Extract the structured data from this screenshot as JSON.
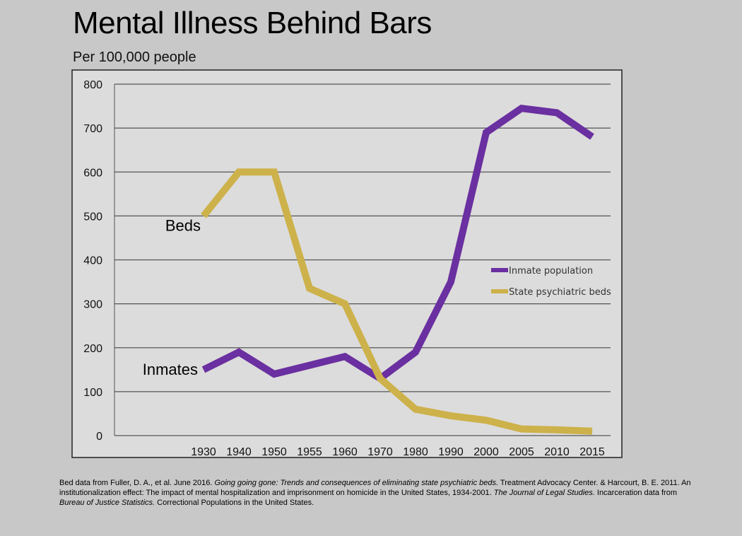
{
  "title": "Mental Illness Behind Bars",
  "subtitle": "Per 100,000 people",
  "colors": {
    "inmate": "#6a2fa0",
    "beds": "#cdb14a",
    "plot_bg": "#dcdcdc",
    "grid": "#555555",
    "frame": "#222222"
  },
  "chart_data": {
    "type": "line",
    "categories": [
      "1930",
      "1940",
      "1950",
      "1955",
      "1960",
      "1970",
      "1980",
      "1990",
      "2000",
      "2005",
      "2010",
      "2015"
    ],
    "series": [
      {
        "name": "Inmate population",
        "values": [
          150,
          190,
          140,
          160,
          180,
          130,
          190,
          350,
          690,
          745,
          735,
          680
        ]
      },
      {
        "name": "State psychiatric beds",
        "values": [
          500,
          600,
          600,
          335,
          300,
          130,
          60,
          45,
          35,
          15,
          13,
          10
        ]
      }
    ],
    "ylim": [
      0,
      800
    ],
    "yticks": [
      "0",
      "100",
      "200",
      "300",
      "400",
      "500",
      "600",
      "700",
      "800"
    ],
    "grid": true,
    "legend_position": "right-middle",
    "annotations": [
      {
        "text": "Beds",
        "series": "State psychiatric beds"
      },
      {
        "text": "Inmates",
        "series": "Inmate population"
      }
    ]
  },
  "citation": {
    "p1": "Bed data from Fuller, D. A., et al. June 2016. ",
    "i1": "Going going gone: Trends and consequences of eliminating state psychiatric beds.",
    "p2": " Treatment Advocacy Center. & Harcourt, B. E. 2011. An institutionalization effect: The impact of mental hospitalization and imprisonment on homicide in the United States, 1934-2001. ",
    "i2": "The Journal of Legal Studies.",
    "p3": " Incarceration data from ",
    "i3": "Bureau of Justice Statistics.",
    "p4": " Correctional Populations in the United States."
  }
}
